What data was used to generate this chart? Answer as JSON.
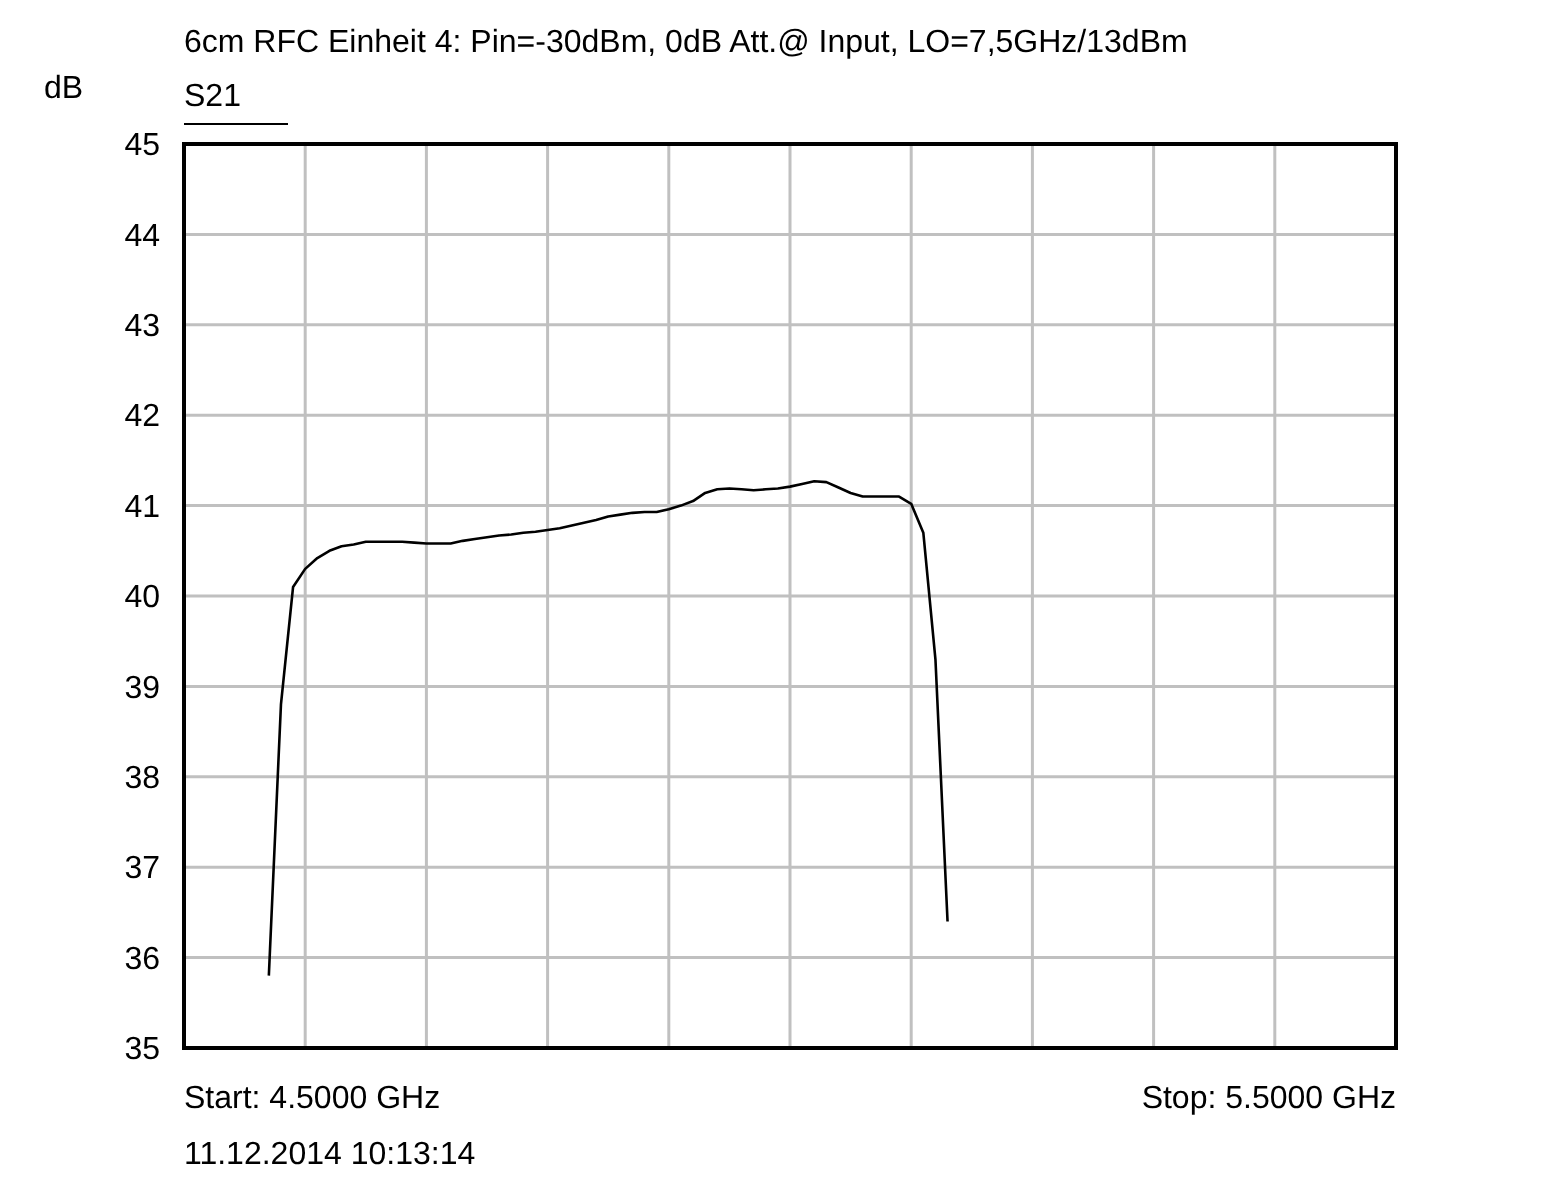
{
  "chart_data": {
    "type": "line",
    "title": "6cm RFC Einheit 4: Pin=-30dBm, 0dB Att.@ Input, LO=7,5GHz/13dBm",
    "ylabel": "dB",
    "categories": [
      null,
      null,
      null,
      null,
      null,
      null,
      null,
      null,
      null,
      null,
      null,
      null,
      null,
      null,
      null,
      null,
      null,
      null,
      null,
      null,
      null,
      null,
      null,
      null,
      null,
      null,
      null,
      null,
      null,
      null,
      null,
      null,
      null,
      null,
      null,
      null,
      null,
      null,
      null,
      null,
      null,
      null,
      null,
      null,
      null,
      null,
      null,
      null,
      null,
      null,
      null,
      null,
      null,
      null,
      null,
      null,
      null,
      null,
      null,
      null,
      null,
      null,
      null,
      null,
      null,
      null,
      null,
      null,
      null,
      null,
      null,
      null,
      null,
      null,
      null,
      null,
      null,
      null,
      null,
      null,
      null,
      null,
      null,
      null,
      null,
      null,
      null,
      null,
      null,
      null,
      null,
      null,
      null,
      null,
      null,
      null,
      null,
      null,
      null,
      null,
      null
    ],
    "ylim": [
      35,
      45
    ],
    "yticks": [
      35,
      36,
      37,
      38,
      39,
      40,
      41,
      42,
      43,
      44,
      45
    ],
    "tick_labels": "y",
    "grid": true,
    "line_style": "solid",
    "annotations": [
      "Start: 4.5000 GHz",
      "Stop: 5.5000 GHz",
      "11.12.2014 10:13:14"
    ],
    "series": [
      {
        "name": "S21",
        "color": "#000000",
        "values": [
          null,
          null,
          null,
          null,
          null,
          null,
          null,
          35.8,
          38.8,
          40.1,
          40.3,
          40.42,
          40.5,
          40.55,
          40.57,
          40.6,
          40.6,
          40.6,
          40.6,
          40.59,
          40.58,
          40.58,
          40.58,
          40.61,
          40.63,
          40.65,
          40.67,
          40.68,
          40.7,
          40.71,
          40.73,
          40.75,
          40.78,
          40.81,
          40.84,
          40.88,
          40.9,
          40.92,
          40.93,
          40.93,
          40.96,
          41.0,
          41.05,
          41.14,
          41.18,
          41.19,
          41.18,
          41.17,
          41.18,
          41.19,
          41.21,
          41.24,
          41.27,
          41.26,
          41.2,
          41.14,
          41.1,
          41.1,
          41.1,
          41.1,
          41.02,
          40.7,
          39.3,
          36.4,
          null,
          null,
          null,
          null,
          null,
          null,
          null,
          null,
          null,
          null,
          null,
          null,
          null,
          null,
          null,
          null,
          null,
          null,
          null,
          null,
          null,
          null,
          null,
          null,
          null,
          null,
          null,
          null,
          null,
          null,
          null,
          null,
          null,
          null,
          null,
          null,
          null
        ]
      }
    ]
  }
}
